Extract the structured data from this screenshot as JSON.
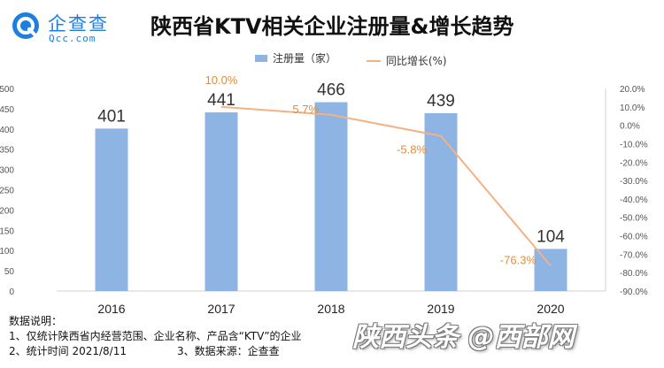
{
  "brand": {
    "name_cn": "企查查",
    "name_en": "Qcc.com"
  },
  "colors": {
    "bar": "#8db4e2",
    "line": "#f4b183",
    "brand": "#1f7fe0",
    "axis_text": "#555555",
    "growth_label": "#e38d3c"
  },
  "chart_data": {
    "type": "bar",
    "title": "陕西省KTV相关企业注册量&增长趋势",
    "categories": [
      "2016",
      "2017",
      "2018",
      "2019",
      "2020"
    ],
    "series": [
      {
        "name": "注册量（家）",
        "type": "bar",
        "axis": "left",
        "values": [
          401,
          441,
          466,
          439,
          104
        ]
      },
      {
        "name": "同比增长(%)",
        "type": "line",
        "axis": "right",
        "values": [
          null,
          10.0,
          5.7,
          -5.8,
          -76.3
        ]
      }
    ],
    "bar_labels": [
      "401",
      "441",
      "466",
      "439",
      "104"
    ],
    "line_labels": [
      "10.0%",
      "5.7%",
      "-5.8%",
      "-76.3%"
    ],
    "y_left": {
      "min": 0,
      "max": 500,
      "step": 50,
      "ticks": [
        "0",
        "50",
        "100",
        "150",
        "200",
        "250",
        "300",
        "350",
        "400",
        "450",
        "500"
      ]
    },
    "y_right": {
      "min": -90,
      "max": 20,
      "step": 10,
      "ticks": [
        "20.0%",
        "10.0%",
        "0.0%",
        "-10.0%",
        "-20.0%",
        "-30.0%",
        "-40.0%",
        "-50.0%",
        "-60.0%",
        "-70.0%",
        "-80.0%",
        "-90.0%"
      ]
    },
    "legend_position": "top-center"
  },
  "notes": {
    "heading": "数据说明：",
    "line1": "1、仅统计陕西省内经营范围、企业名称、产品含“KTV”的企业",
    "line2a": "2、统计时间 2021/8/11",
    "line2b": "3、数据来源：企查查"
  },
  "watermark": "陕西头条 @西部网"
}
